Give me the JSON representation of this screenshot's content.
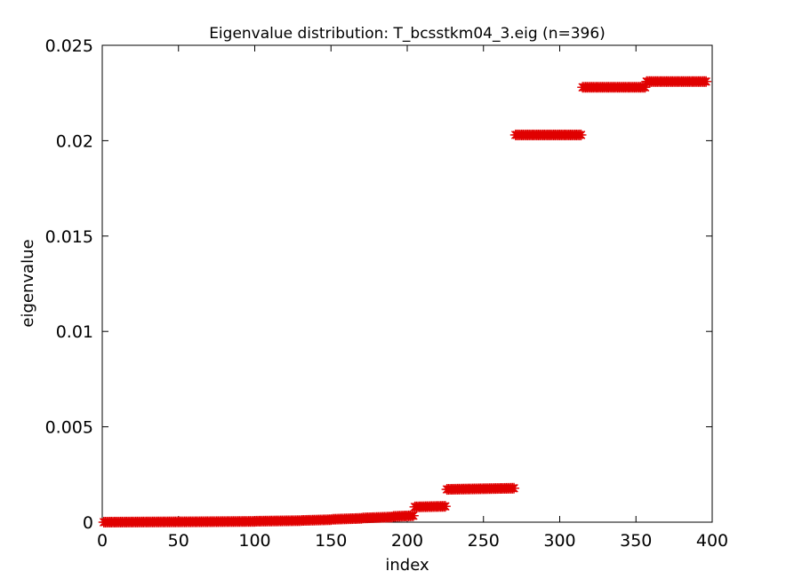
{
  "chart_data": {
    "type": "scatter",
    "title": "Eigenvalue distribution: T_bcsstkm04_3.eig (n=396)",
    "xlabel": "index",
    "ylabel": "eigenvalue",
    "xlim": [
      0,
      400
    ],
    "ylim": [
      0,
      0.025
    ],
    "xticks": [
      0,
      50,
      100,
      150,
      200,
      250,
      300,
      350,
      400
    ],
    "xtick_labels": [
      "0",
      "50",
      "100",
      "150",
      "200",
      "250",
      "300",
      "350",
      "400"
    ],
    "yticks": [
      0,
      0.005,
      0.01,
      0.015,
      0.02,
      0.025
    ],
    "ytick_labels": [
      "0",
      "0.005",
      "0.01",
      "0.015",
      "0.02",
      "0.025"
    ],
    "grid": false,
    "marker": "asterisk",
    "marker_color": "#e00000",
    "n": 396,
    "segments": [
      {
        "from": 1,
        "to": 60,
        "y_start": 0.0,
        "y_end": 2e-05
      },
      {
        "from": 61,
        "to": 100,
        "y_start": 2e-05,
        "y_end": 4e-05
      },
      {
        "from": 101,
        "to": 130,
        "y_start": 5e-05,
        "y_end": 8e-05
      },
      {
        "from": 131,
        "to": 150,
        "y_start": 9e-05,
        "y_end": 0.00013
      },
      {
        "from": 151,
        "to": 170,
        "y_start": 0.00015,
        "y_end": 0.0002
      },
      {
        "from": 171,
        "to": 190,
        "y_start": 0.00022,
        "y_end": 0.00027
      },
      {
        "from": 191,
        "to": 204,
        "y_start": 0.0003,
        "y_end": 0.00034
      },
      {
        "from": 205,
        "to": 225,
        "y_start": 0.0008,
        "y_end": 0.00083
      },
      {
        "from": 226,
        "to": 270,
        "y_start": 0.00172,
        "y_end": 0.00178
      },
      {
        "from": 271,
        "to": 314,
        "y_start": 0.0203,
        "y_end": 0.0203
      },
      {
        "from": 315,
        "to": 356,
        "y_start": 0.0228,
        "y_end": 0.0228
      },
      {
        "from": 357,
        "to": 396,
        "y_start": 0.0231,
        "y_end": 0.0231
      }
    ]
  }
}
